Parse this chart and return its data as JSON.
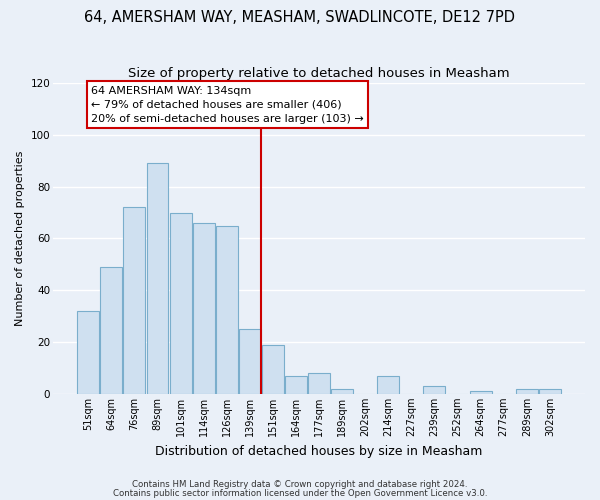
{
  "title": "64, AMERSHAM WAY, MEASHAM, SWADLINCOTE, DE12 7PD",
  "subtitle": "Size of property relative to detached houses in Measham",
  "xlabel": "Distribution of detached houses by size in Measham",
  "ylabel": "Number of detached properties",
  "bar_labels": [
    "51sqm",
    "64sqm",
    "76sqm",
    "89sqm",
    "101sqm",
    "114sqm",
    "126sqm",
    "139sqm",
    "151sqm",
    "164sqm",
    "177sqm",
    "189sqm",
    "202sqm",
    "214sqm",
    "227sqm",
    "239sqm",
    "252sqm",
    "264sqm",
    "277sqm",
    "289sqm",
    "302sqm"
  ],
  "bar_heights": [
    32,
    49,
    72,
    89,
    70,
    66,
    65,
    25,
    19,
    7,
    8,
    2,
    0,
    7,
    0,
    3,
    0,
    1,
    0,
    2,
    2
  ],
  "bar_color": "#cfe0f0",
  "bar_edge_color": "#7aaecc",
  "vline_x": 7.5,
  "vline_color": "#cc0000",
  "annotation_title": "64 AMERSHAM WAY: 134sqm",
  "annotation_line1": "← 79% of detached houses are smaller (406)",
  "annotation_line2": "20% of semi-detached houses are larger (103) →",
  "annotation_box_facecolor": "white",
  "annotation_box_edgecolor": "#cc0000",
  "ylim": [
    0,
    120
  ],
  "yticks": [
    0,
    20,
    40,
    60,
    80,
    100,
    120
  ],
  "footer1": "Contains HM Land Registry data © Crown copyright and database right 2024.",
  "footer2": "Contains public sector information licensed under the Open Government Licence v3.0.",
  "background_color": "#eaf0f8",
  "grid_color": "#ffffff",
  "title_fontsize": 10.5,
  "subtitle_fontsize": 9.5,
  "ylabel_fontsize": 8,
  "xlabel_fontsize": 9,
  "tick_fontsize": 7,
  "footer_fontsize": 6.2,
  "annotation_fontsize": 8
}
